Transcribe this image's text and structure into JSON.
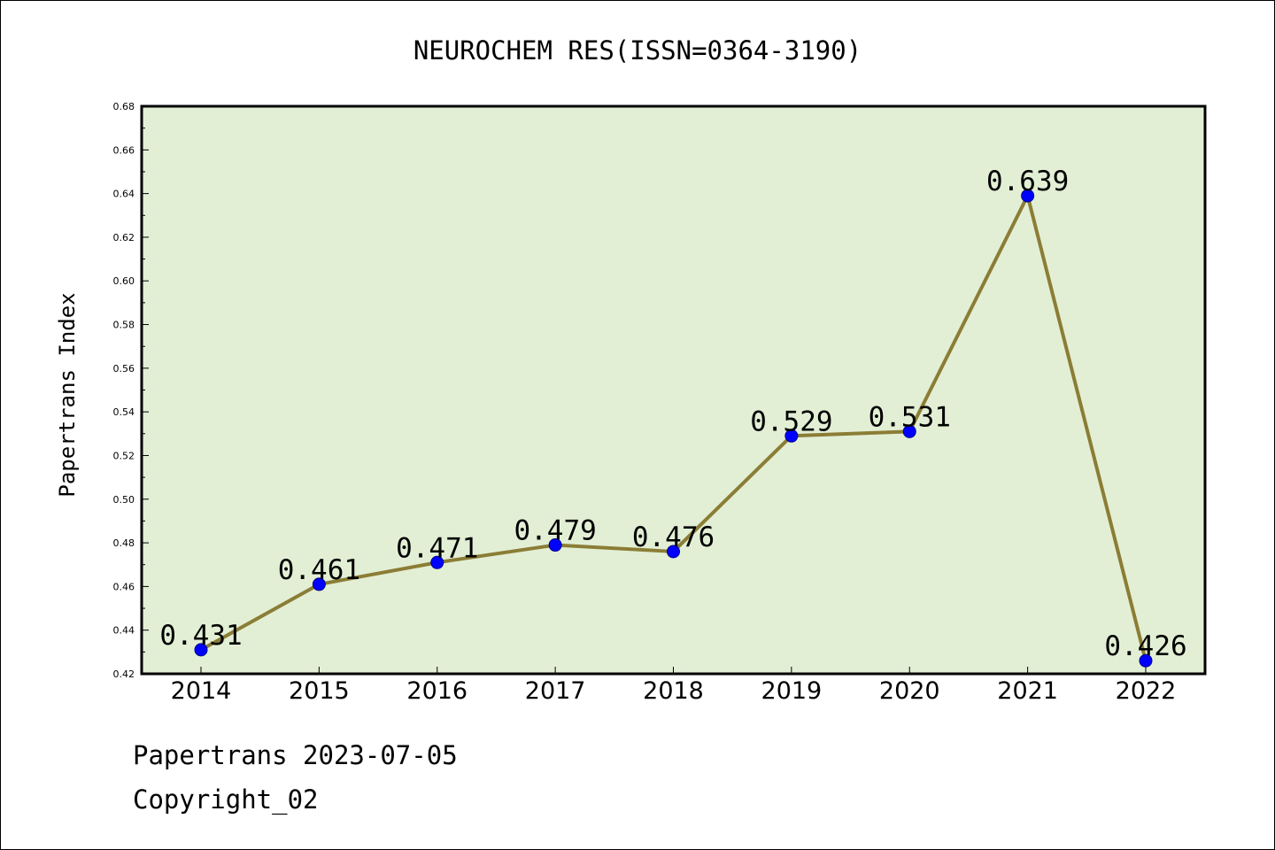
{
  "chart_data": {
    "type": "line",
    "title": "NEUROCHEM RES(ISSN=0364-3190)",
    "ylabel": "Papertrans Index",
    "xlabel": "",
    "categories": [
      "2014",
      "2015",
      "2016",
      "2017",
      "2018",
      "2019",
      "2020",
      "2021",
      "2022"
    ],
    "values": [
      0.431,
      0.461,
      0.471,
      0.479,
      0.476,
      0.529,
      0.531,
      0.639,
      0.426
    ],
    "data_labels": [
      "0.431",
      "0.461",
      "0.471",
      "0.479",
      "0.476",
      "0.529",
      "0.531",
      "0.639",
      "0.426"
    ],
    "ylim": [
      0.42,
      0.68
    ],
    "yticks": [
      "0.42",
      "0.44",
      "0.46",
      "0.48",
      "0.50",
      "0.52",
      "0.54",
      "0.56",
      "0.58",
      "0.60",
      "0.62",
      "0.64",
      "0.66",
      "0.68"
    ],
    "grid": false,
    "colors": {
      "plot_background": "#e2efd5",
      "line": "#8b7d35",
      "marker": "#0000ff"
    }
  },
  "footer": {
    "date_line": "Papertrans 2023-07-05",
    "copyright": "Copyright_02"
  }
}
